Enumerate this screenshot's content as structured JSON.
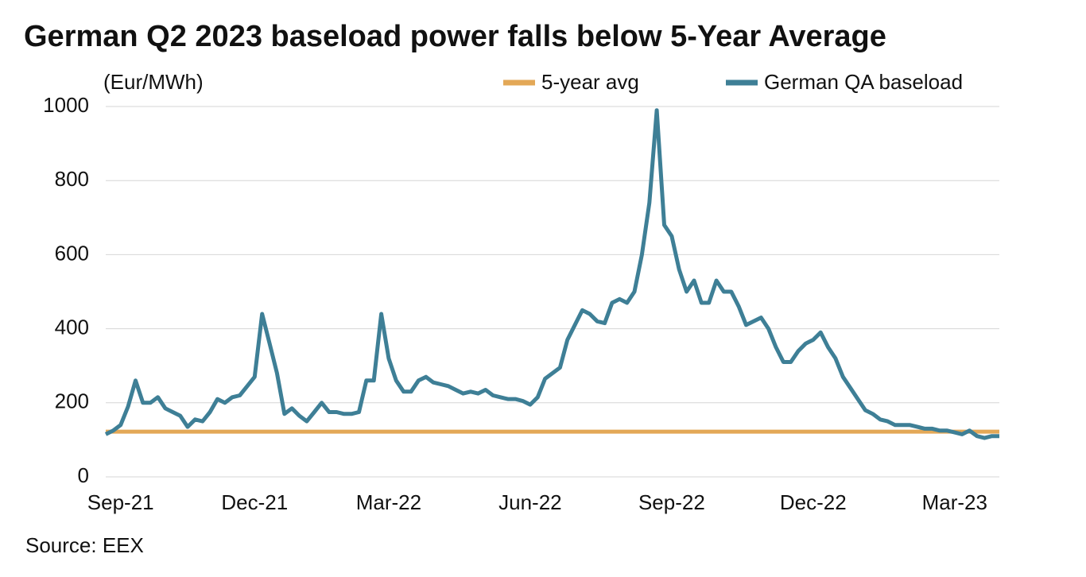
{
  "chart_data": {
    "type": "line",
    "title": "German Q2 2023 baseload power falls below 5-Year Average",
    "y_label": "(Eur/MWh)",
    "source": "Source: EEX",
    "categories": [
      null,
      null,
      "Sep-21",
      null,
      null,
      null,
      null,
      null,
      null,
      null,
      null,
      null,
      null,
      null,
      null,
      null,
      null,
      null,
      null,
      null,
      "Dec-21",
      null,
      null,
      null,
      null,
      null,
      null,
      null,
      null,
      null,
      null,
      null,
      null,
      null,
      null,
      null,
      null,
      null,
      "Mar-22",
      null,
      null,
      null,
      null,
      null,
      null,
      null,
      null,
      null,
      null,
      null,
      null,
      null,
      null,
      null,
      null,
      null,
      null,
      "Jun-22",
      null,
      null,
      null,
      null,
      null,
      null,
      null,
      null,
      null,
      null,
      null,
      null,
      null,
      null,
      null,
      null,
      null,
      null,
      "Sep-22",
      null,
      null,
      null,
      null,
      null,
      null,
      null,
      null,
      null,
      null,
      null,
      null,
      null,
      null,
      null,
      null,
      null,
      null,
      "Dec-22",
      null,
      null,
      null,
      null,
      null,
      null,
      null,
      null,
      null,
      null,
      null,
      null,
      null,
      null,
      null,
      null,
      null,
      null,
      "Mar-23",
      null,
      null,
      null,
      null,
      null,
      null
    ],
    "series": [
      {
        "name": "5-year avg",
        "color": "#e3a857",
        "values": [
          122,
          122,
          122,
          122,
          122,
          122,
          122,
          122,
          122,
          122,
          122,
          122,
          122,
          122,
          122,
          122,
          122,
          122,
          122,
          122,
          122,
          122,
          122,
          122,
          122,
          122,
          122,
          122,
          122,
          122,
          122,
          122,
          122,
          122,
          122,
          122,
          122,
          122,
          122,
          122,
          122,
          122,
          122,
          122,
          122,
          122,
          122,
          122,
          122,
          122,
          122,
          122,
          122,
          122,
          122,
          122,
          122,
          122,
          122,
          122,
          122,
          122,
          122,
          122,
          122,
          122,
          122,
          122,
          122,
          122,
          122,
          122,
          122,
          122,
          122,
          122,
          122,
          122,
          122,
          122,
          122,
          122,
          122,
          122,
          122,
          122,
          122,
          122,
          122,
          122,
          122,
          122,
          122,
          122,
          122,
          122,
          122,
          122,
          122,
          122,
          122,
          122,
          122,
          122,
          122,
          122,
          122,
          122,
          122,
          122,
          122,
          122,
          122,
          122,
          122,
          122,
          122,
          122,
          122,
          122,
          122
        ]
      },
      {
        "name": "German QA baseload",
        "color": "#3e7f96",
        "values": [
          115,
          125,
          140,
          190,
          260,
          200,
          200,
          215,
          185,
          175,
          165,
          135,
          155,
          150,
          175,
          210,
          200,
          215,
          220,
          245,
          270,
          440,
          360,
          280,
          170,
          185,
          165,
          150,
          175,
          200,
          175,
          175,
          170,
          170,
          175,
          260,
          260,
          440,
          320,
          260,
          230,
          230,
          260,
          270,
          255,
          250,
          245,
          235,
          225,
          230,
          225,
          235,
          220,
          215,
          210,
          210,
          205,
          195,
          215,
          265,
          280,
          295,
          370,
          410,
          450,
          440,
          420,
          415,
          470,
          480,
          470,
          500,
          600,
          740,
          990,
          680,
          650,
          560,
          500,
          530,
          470,
          470,
          530,
          500,
          500,
          460,
          410,
          420,
          430,
          400,
          350,
          310,
          310,
          340,
          360,
          370,
          390,
          350,
          320,
          270,
          240,
          210,
          180,
          170,
          155,
          150,
          140,
          140,
          140,
          135,
          130,
          130,
          125,
          125,
          120,
          115,
          125,
          110,
          105,
          110,
          110
        ]
      }
    ],
    "ylim": [
      0,
      1000
    ],
    "yticks": [
      0,
      200,
      400,
      600,
      800,
      1000
    ],
    "grid": true,
    "legend": "top-right"
  }
}
